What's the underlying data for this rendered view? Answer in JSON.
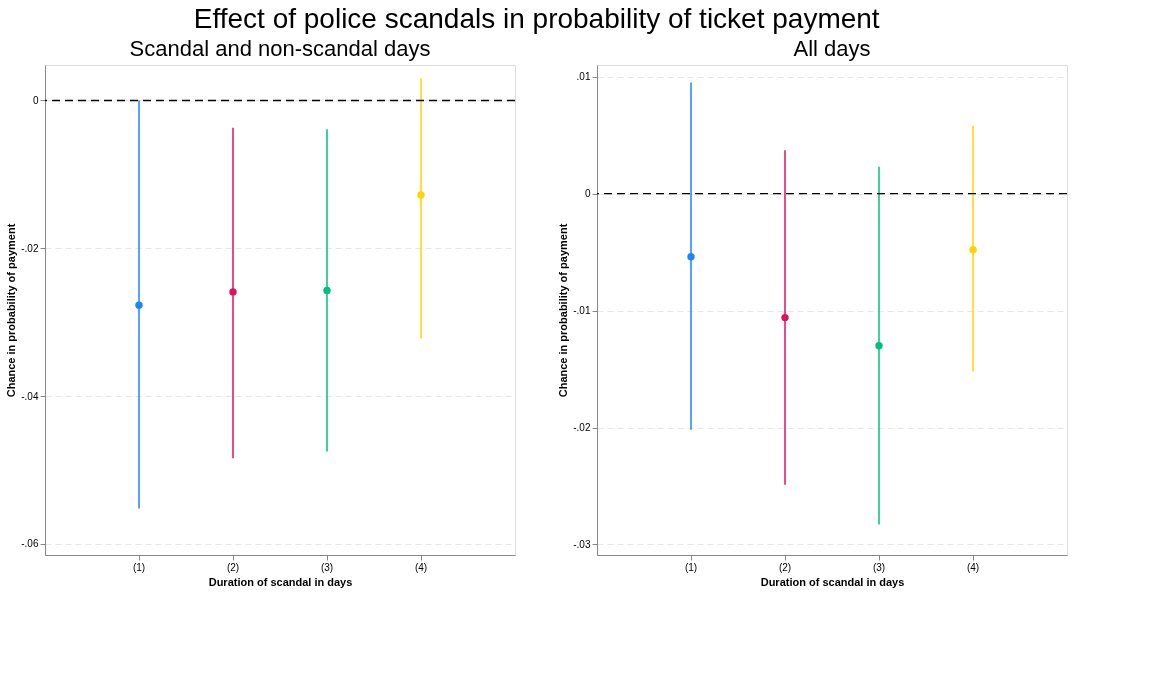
{
  "chart_data": [
    {
      "type": "scatter",
      "title": "Scandal and non-scandal days",
      "annotations": [
        "Effect of police scandals in probability of ticket payment"
      ],
      "xlabel": "Duration of scandal in days",
      "ylabel": "Chance in probability of payment",
      "categories": [
        "(1)",
        "(2)",
        "(3)",
        "(4)"
      ],
      "values": [
        -0.0277,
        -0.0259,
        -0.0257,
        -0.0128
      ],
      "errors": [
        [
          -0.0552,
          0.0
        ],
        [
          -0.0484,
          -0.0037
        ],
        [
          -0.0475,
          -0.0039
        ],
        [
          -0.0322,
          0.003
        ]
      ],
      "colors": [
        "#1a85ff",
        "#e0115f",
        "#00bf7f",
        "#ffd400"
      ],
      "ylim": [
        -0.0615,
        0.0048
      ],
      "yticks": [
        0,
        {
          "value": -0.02,
          "label": "-.02"
        },
        {
          "value": -0.04,
          "label": "-.04"
        },
        {
          "value": -0.06,
          "label": "-.06"
        }
      ],
      "ref_lines": [
        {
          "axis": "y",
          "value": 0,
          "color": "#000000",
          "line_style": "dashed"
        }
      ],
      "grid": "y",
      "marker": "circle"
    },
    {
      "type": "scatter",
      "title": "All days",
      "xlabel": "Duration of scandal in days",
      "ylabel": "Chance in probability of payment",
      "categories": [
        "(1)",
        "(2)",
        "(3)",
        "(4)"
      ],
      "values": [
        -0.0054,
        -0.0106,
        -0.013,
        -0.0048
      ],
      "errors": [
        [
          -0.0202,
          0.0095
        ],
        [
          -0.0249,
          0.0037
        ],
        [
          -0.0283,
          0.0023
        ],
        [
          -0.0152,
          0.0058
        ]
      ],
      "colors": [
        "#1a85ff",
        "#e0115f",
        "#00bf7f",
        "#ffd400"
      ],
      "ylim": [
        -0.0309,
        0.011
      ],
      "yticks": [
        {
          "value": 0.01,
          "label": ".01"
        },
        0,
        {
          "value": -0.01,
          "label": "-.01"
        },
        {
          "value": -0.02,
          "label": "-.02"
        },
        {
          "value": -0.03,
          "label": "-.03"
        }
      ],
      "ref_lines": [
        {
          "axis": "y",
          "value": 0,
          "color": "#000000",
          "line_style": "dashed"
        }
      ],
      "grid": "y",
      "marker": "circle"
    }
  ]
}
